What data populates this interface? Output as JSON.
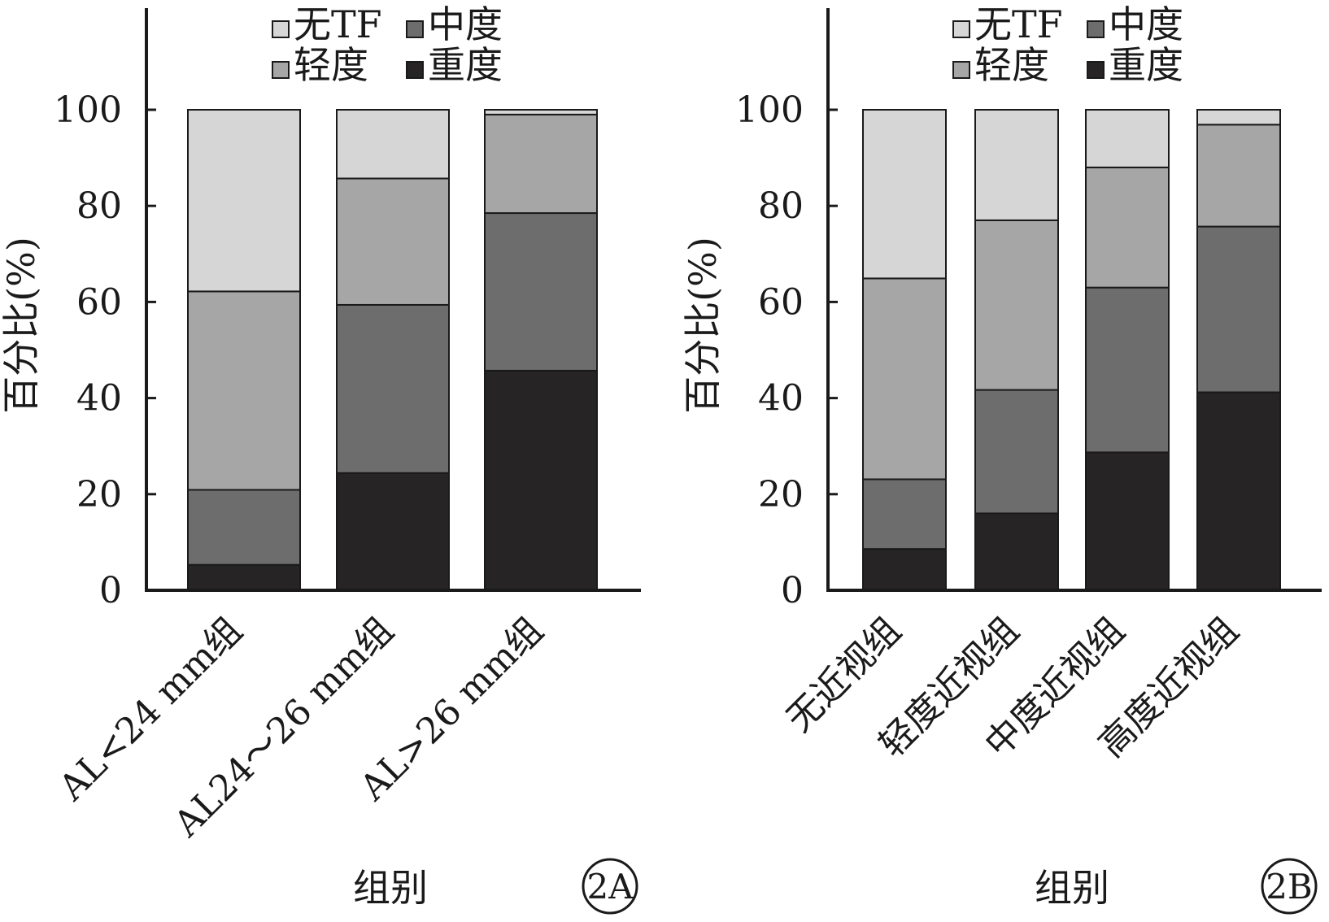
{
  "chart_data": [
    {
      "type": "bar",
      "stacked": true,
      "panel_label": "2A",
      "xlabel": "组别",
      "ylabel": "百分比(%)",
      "ylim": [
        0,
        100
      ],
      "yticks": [
        "0",
        "20",
        "40",
        "60",
        "80",
        "100"
      ],
      "categories": [
        "AL<24 mm组",
        "AL24～26 mm组",
        "AL>26 mm组"
      ],
      "legend_position": "top-center",
      "series": [
        {
          "name": "重度",
          "color": "#262425",
          "values": [
            5.3,
            24.4,
            45.7
          ]
        },
        {
          "name": "中度",
          "color": "#6e6d6e",
          "values": [
            15.6,
            35.0,
            32.8
          ]
        },
        {
          "name": "轻度",
          "color": "#a6a6a6",
          "values": [
            41.3,
            26.3,
            20.5
          ]
        },
        {
          "name": "无TF",
          "color": "#d6d6d6",
          "values": [
            37.8,
            14.3,
            1.0
          ]
        }
      ]
    },
    {
      "type": "bar",
      "stacked": true,
      "panel_label": "2B",
      "xlabel": "组别",
      "ylabel": "百分比(%)",
      "ylim": [
        0,
        100
      ],
      "yticks": [
        "0",
        "20",
        "40",
        "60",
        "80",
        "100"
      ],
      "categories": [
        "无近视组",
        "轻度近视组",
        "中度近视组",
        "高度近视组"
      ],
      "legend_position": "top-center",
      "series": [
        {
          "name": "重度",
          "color": "#262425",
          "values": [
            8.6,
            16.0,
            28.7,
            41.2
          ]
        },
        {
          "name": "中度",
          "color": "#6e6d6e",
          "values": [
            14.5,
            25.7,
            34.3,
            34.5
          ]
        },
        {
          "name": "轻度",
          "color": "#a6a6a6",
          "values": [
            41.8,
            35.3,
            25.0,
            21.2
          ]
        },
        {
          "name": "无TF",
          "color": "#d6d6d6",
          "values": [
            35.1,
            23.0,
            12.0,
            3.1
          ]
        }
      ]
    }
  ],
  "legend_order": [
    "无TF",
    "中度",
    "轻度",
    "重度"
  ]
}
